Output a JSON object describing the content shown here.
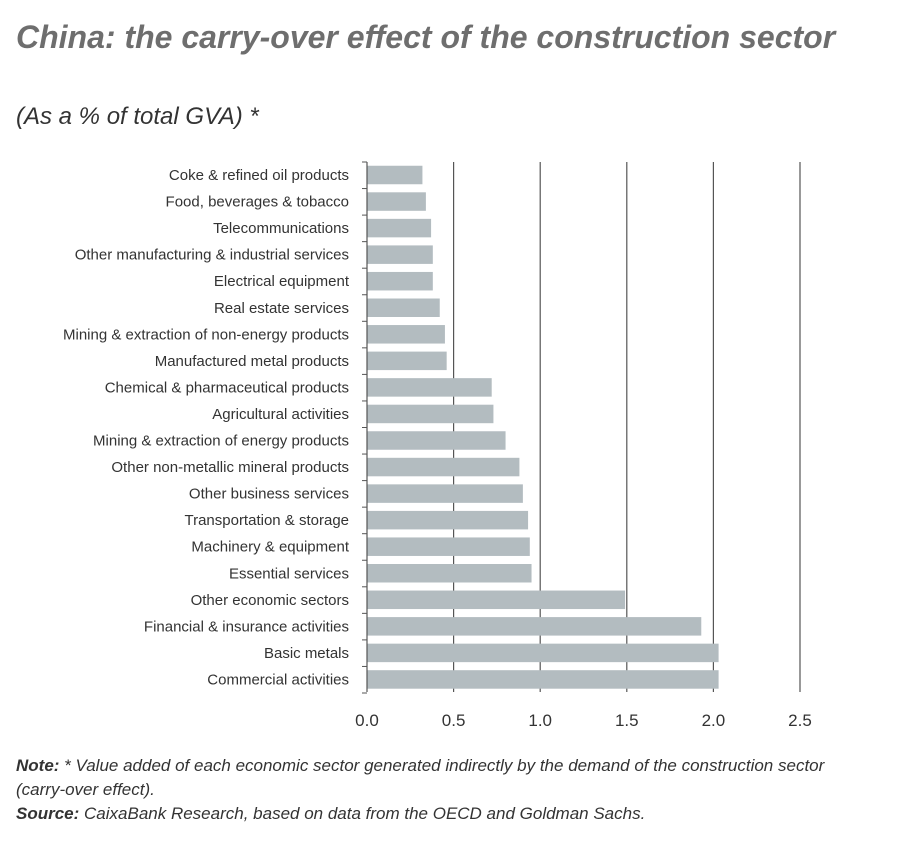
{
  "chart_data": {
    "type": "bar",
    "orientation": "horizontal",
    "title": "China: the carry-over effect of the construction sector",
    "subtitle": "(As a % of total GVA) *",
    "categories": [
      "Coke & refined oil products",
      "Food, beverages & tobacco",
      "Telecommunications",
      "Other manufacturing & industrial services",
      "Electrical equipment",
      "Real estate services",
      "Mining & extraction of non-energy products",
      "Manufactured metal products",
      "Chemical & pharmaceutical products",
      "Agricultural activities",
      "Mining & extraction of energy products",
      "Other non-metallic mineral products",
      "Other business services",
      "Transportation & storage",
      "Machinery & equipment",
      "Essential services",
      "Other economic sectors",
      "Financial & insurance activities",
      "Basic metals",
      "Commercial activities"
    ],
    "values": [
      0.32,
      0.34,
      0.37,
      0.38,
      0.38,
      0.42,
      0.45,
      0.46,
      0.72,
      0.73,
      0.8,
      0.88,
      0.9,
      0.93,
      0.94,
      0.95,
      1.49,
      1.93,
      2.03,
      2.03
    ],
    "xlim": [
      0,
      2.5
    ],
    "xticks": [
      "0.0",
      "0.5",
      "1.0",
      "1.5",
      "2.0",
      "2.5"
    ],
    "xtick_values": [
      0,
      0.5,
      1.0,
      1.5,
      2.0,
      2.5
    ],
    "grid": "vertical",
    "bar_color": "#b3bcc0"
  },
  "notes": {
    "note_label": "Note:",
    "note_text": " * Value added of each economic sector generated indirectly by the demand of the construction sector (carry-over effect).",
    "source_label": "Source:",
    "source_text": " CaixaBank Research, based on data from the OECD and Goldman Sachs."
  }
}
